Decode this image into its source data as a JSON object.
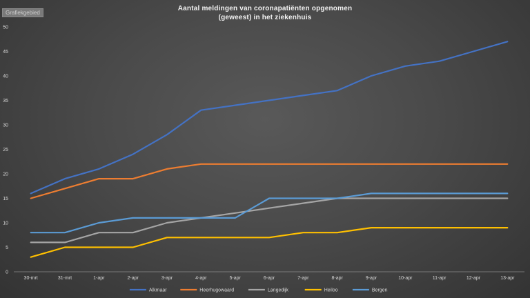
{
  "badge": "Grafiekgebied",
  "chart_data": {
    "type": "line",
    "title_line1": "Aantal meldingen van coronapatiënten opgenomen",
    "title_line2": "(geweest) in het ziekenhuis",
    "categories": [
      "30-mrt",
      "31-mrt",
      "1-apr",
      "2-apr",
      "3-apr",
      "4-apr",
      "5-apr",
      "6-apr",
      "7-apr",
      "8-apr",
      "9-apr",
      "10-apr",
      "11-apr",
      "12-apr",
      "13-apr"
    ],
    "ylim": [
      0,
      50
    ],
    "yticks": [
      0,
      5,
      10,
      15,
      20,
      25,
      30,
      35,
      40,
      45,
      50
    ],
    "grid": false,
    "legend_position": "bottom",
    "series": [
      {
        "name": "Alkmaar",
        "color": "#4472C4",
        "values": [
          16,
          19,
          21,
          24,
          28,
          33,
          34,
          35,
          36,
          37,
          40,
          42,
          43,
          45,
          47
        ]
      },
      {
        "name": "Heerhugowaard",
        "color": "#ED7D31",
        "values": [
          15,
          17,
          19,
          19,
          21,
          22,
          22,
          22,
          22,
          22,
          22,
          22,
          22,
          22,
          22
        ]
      },
      {
        "name": "Langedijk",
        "color": "#A5A5A5",
        "values": [
          6,
          6,
          8,
          8,
          10,
          11,
          12,
          13,
          14,
          15,
          15,
          15,
          15,
          15,
          15
        ]
      },
      {
        "name": "Heiloo",
        "color": "#FFC000",
        "values": [
          3,
          5,
          5,
          5,
          7,
          7,
          7,
          7,
          8,
          8,
          9,
          9,
          9,
          9,
          9
        ]
      },
      {
        "name": "Bergen",
        "color": "#5B9BD5",
        "values": [
          8,
          8,
          10,
          11,
          11,
          11,
          11,
          15,
          15,
          15,
          16,
          16,
          16,
          16,
          16
        ]
      }
    ]
  }
}
